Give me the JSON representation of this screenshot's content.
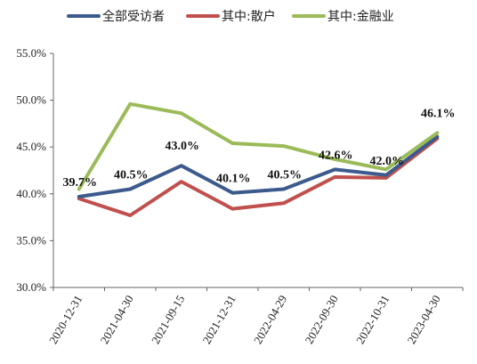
{
  "chart_data": {
    "type": "line",
    "title": "",
    "xlabel": "",
    "ylabel": "",
    "categories": [
      "2020-12-31",
      "2021-04-30",
      "2021-09-15",
      "2021-12-31",
      "2022-04-29",
      "2022-09-30",
      "2022-10-31",
      "2023-04-30"
    ],
    "ylim": [
      30.0,
      55.0
    ],
    "yticks": [
      "55.0%",
      "50.0%",
      "45.0%",
      "40.0%",
      "35.0%",
      "30.0%"
    ],
    "ytick_values": [
      55,
      50,
      45,
      40,
      35,
      30
    ],
    "legend_position": "top",
    "grid": false,
    "series": [
      {
        "name": "全部受访者",
        "color": "#3c5a8c",
        "values": [
          39.7,
          40.5,
          43.0,
          40.1,
          40.5,
          42.6,
          42.0,
          46.1
        ],
        "data_labels": [
          "39.7%",
          "40.5%",
          "43.0%",
          "40.1%",
          "40.5%",
          "42.6%",
          "42.0%",
          "46.1%"
        ]
      },
      {
        "name": "其中:散户",
        "color": "#c0504d",
        "values": [
          39.5,
          37.7,
          41.3,
          38.4,
          39.0,
          41.8,
          41.7,
          45.9
        ]
      },
      {
        "name": "其中:金融业",
        "color": "#9bbb59",
        "values": [
          40.5,
          49.6,
          48.6,
          45.4,
          45.1,
          43.7,
          42.6,
          46.5
        ]
      }
    ]
  }
}
